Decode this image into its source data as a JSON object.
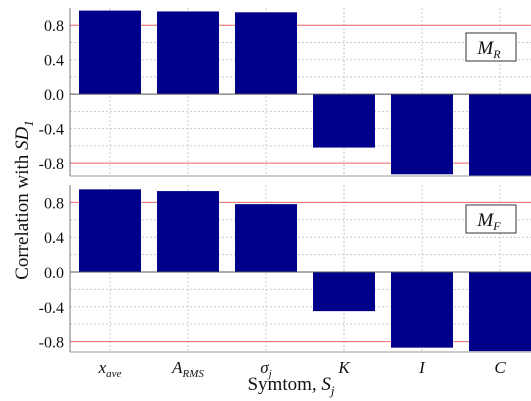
{
  "chart_data": {
    "type": "bar",
    "categories": [
      {
        "base": "x",
        "sub": "ave"
      },
      {
        "base": "A",
        "sub": "RMS"
      },
      {
        "base": "σ",
        "sub": "j"
      },
      {
        "base": "K",
        "sub": ""
      },
      {
        "base": "I",
        "sub": ""
      },
      {
        "base": "C",
        "sub": ""
      }
    ],
    "panels": [
      {
        "name": {
          "base": "M",
          "sub": "R"
        },
        "values": [
          0.97,
          0.96,
          0.95,
          -0.62,
          -0.93,
          -0.95
        ],
        "ylim": [
          -0.95,
          1.0
        ],
        "yticks": [
          "0.8",
          "0.4",
          "0.0",
          "-0.4",
          "-0.8"
        ],
        "red_lines": [
          0.8,
          -0.8
        ]
      },
      {
        "name": {
          "base": "M",
          "sub": "F"
        },
        "values": [
          0.95,
          0.93,
          0.78,
          -0.45,
          -0.87,
          -0.91
        ],
        "ylim": [
          -0.92,
          1.0
        ],
        "yticks": [
          "0.8",
          "0.4",
          "0.0",
          "-0.4",
          "-0.8"
        ],
        "red_lines": [
          0.8,
          -0.8
        ]
      }
    ],
    "ylabel": {
      "base": "Correlation with ",
      "italic": "SD",
      "sub": "1"
    },
    "xlabel": {
      "base": "Symtom, ",
      "italic": "S",
      "sub": "j"
    },
    "bar_color": "#00008b",
    "grid": true
  }
}
